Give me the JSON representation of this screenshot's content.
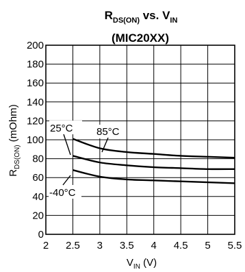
{
  "chart_data": {
    "type": "line",
    "title_main": "R",
    "title_main_sub": "DS(ON)",
    "title_mid": " vs. V",
    "title_mid_sub": "IN",
    "subtitle": "(MIC20XX)",
    "xlabel_main": "V",
    "xlabel_sub": "IN",
    "xlabel_unit": " (V)",
    "ylabel_main": "R",
    "ylabel_sub": "DS(ON)",
    "ylabel_unit": " (mOhm)",
    "xlim": [
      2,
      5.5
    ],
    "ylim": [
      0,
      200
    ],
    "x_ticks": [
      2,
      2.5,
      3,
      3.5,
      4,
      4.5,
      5,
      5.5
    ],
    "x_tick_labels": [
      "2",
      "2.5",
      "3",
      "3.5",
      "4",
      "4.5",
      "5",
      "5.5"
    ],
    "y_ticks": [
      0,
      20,
      40,
      60,
      80,
      100,
      120,
      140,
      160,
      180,
      200
    ],
    "y_tick_labels": [
      "0",
      "20",
      "40",
      "60",
      "80",
      "100",
      "120",
      "140",
      "160",
      "180",
      "200"
    ],
    "grid": true,
    "series": [
      {
        "name": "85°C",
        "x": [
          2.5,
          3,
          3.5,
          4,
          4.5,
          5,
          5.5
        ],
        "y": [
          101,
          91,
          87,
          85,
          83,
          82,
          81
        ]
      },
      {
        "name": "25°C",
        "x": [
          2.5,
          3,
          3.5,
          4,
          4.5,
          5,
          5.5
        ],
        "y": [
          83,
          76,
          73,
          71,
          70,
          69,
          69
        ]
      },
      {
        "name": "-40°C",
        "x": [
          2.5,
          3,
          3.5,
          4,
          4.5,
          5,
          5.5
        ],
        "y": [
          68,
          61,
          58,
          57,
          56,
          55,
          54
        ]
      }
    ]
  }
}
